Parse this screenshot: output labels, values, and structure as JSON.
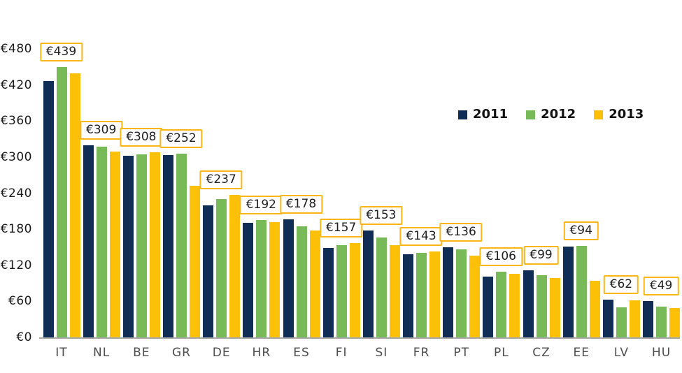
{
  "chart_data": {
    "type": "bar",
    "title": "",
    "xlabel": "",
    "ylabel": "",
    "ylim": [
      0,
      480
    ],
    "grid": false,
    "legend_position": "upper-right",
    "categories": [
      "IT",
      "NL",
      "BE",
      "GR",
      "DE",
      "HR",
      "ES",
      "FI",
      "SI",
      "FR",
      "PT",
      "PL",
      "CZ",
      "EE",
      "LV",
      "HU"
    ],
    "series": [
      {
        "name": "2011",
        "color": "#102d56",
        "values": [
          426,
          320,
          302,
          303,
          220,
          191,
          196,
          149,
          178,
          138,
          150,
          101,
          112,
          151,
          63,
          61
        ]
      },
      {
        "name": "2012",
        "color": "#79ba58",
        "values": [
          450,
          317,
          305,
          306,
          230,
          195,
          185,
          154,
          166,
          141,
          147,
          109,
          104,
          152,
          50,
          51
        ]
      },
      {
        "name": "2013",
        "color": "#fdc008",
        "values": [
          439,
          309,
          308,
          252,
          237,
          192,
          178,
          157,
          153,
          143,
          136,
          106,
          99,
          94,
          62,
          49
        ]
      }
    ],
    "callouts": [
      "€439",
      "€309",
      "€308",
      "€252",
      "€237",
      "€192",
      "€178",
      "€157",
      "€153",
      "€143",
      "€136",
      "€106",
      "€99",
      "€94",
      "€62",
      "€49"
    ],
    "y_ticks": [
      {
        "label": "€0",
        "value": 0
      },
      {
        "label": "€60",
        "value": 60
      },
      {
        "label": "€120",
        "value": 120
      },
      {
        "label": "€180",
        "value": 180
      },
      {
        "label": "€240",
        "value": 240
      },
      {
        "label": "€300",
        "value": 300
      },
      {
        "label": "€360",
        "value": 360
      },
      {
        "label": "€420",
        "value": 420
      },
      {
        "label": "€480",
        "value": 480
      }
    ],
    "style": {
      "callout_border": "#fbb616",
      "callout_bg": "#ffffff",
      "callout_text": "#1f1f1f",
      "axis_line": "#a6a6a6",
      "tick_text": "#1a1a1a",
      "category_text": "#4d4d4d"
    }
  }
}
